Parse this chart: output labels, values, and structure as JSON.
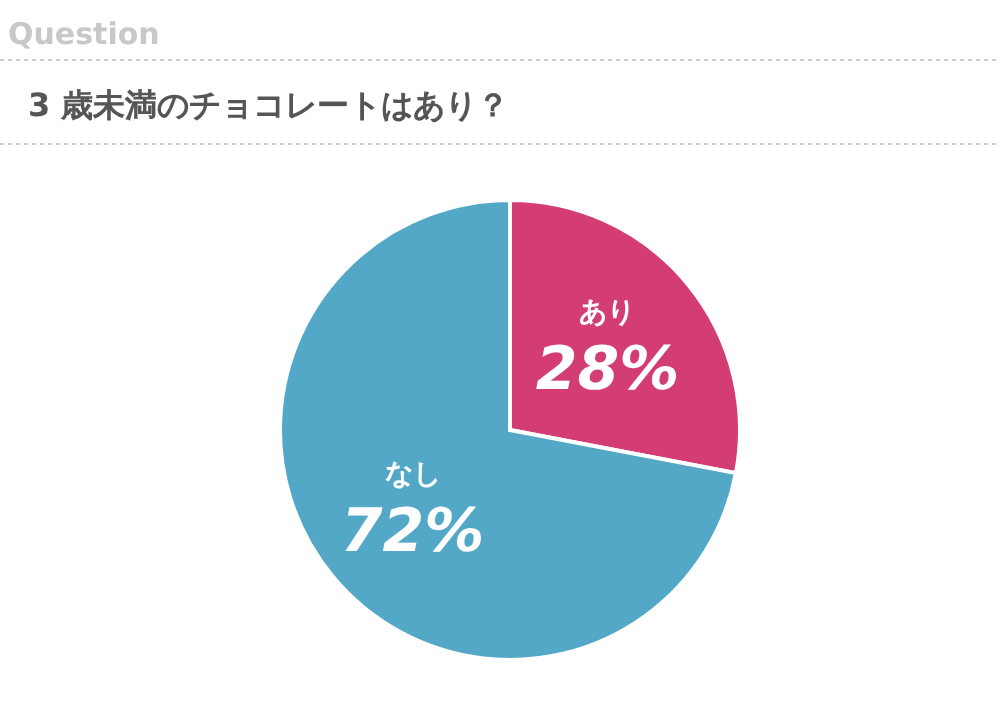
{
  "chart_data": {
    "type": "pie",
    "title": "3 歳未満のチョコレートはあり？",
    "annotations": [
      "Question"
    ],
    "categories": [
      "あり",
      "なし"
    ],
    "values": [
      28,
      72
    ],
    "colors": [
      "#d33d74",
      "#53a8c8"
    ],
    "value_labels": [
      "28%",
      "72%"
    ]
  }
}
